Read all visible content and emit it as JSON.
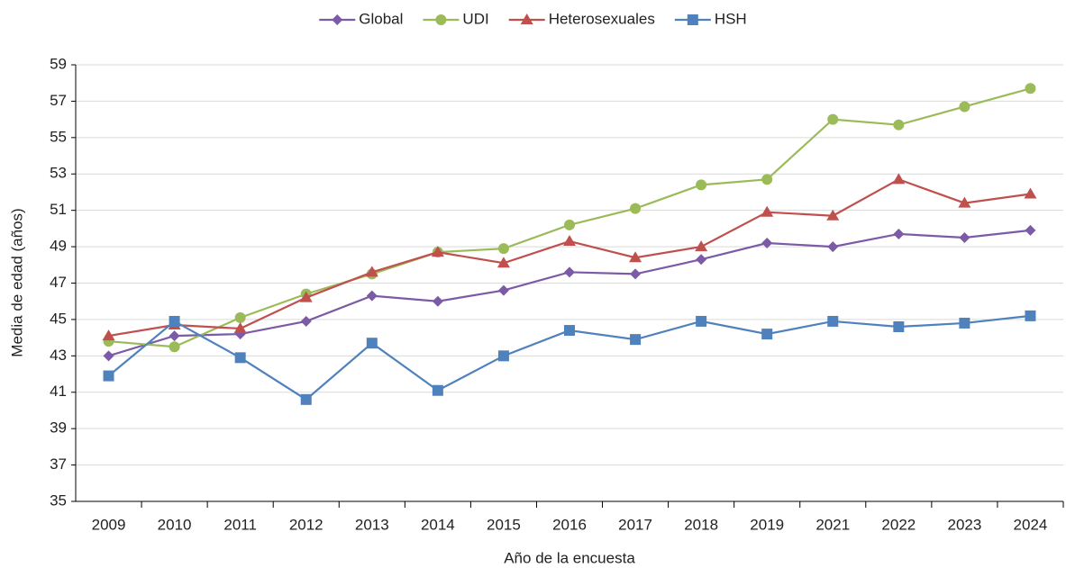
{
  "chart_data": {
    "type": "line",
    "x_label": "Año de la encuesta",
    "y_label": "Media de edad (años)",
    "categories": [
      "2009",
      "2010",
      "2011",
      "2012",
      "2013",
      "2014",
      "2015",
      "2016",
      "2017",
      "2018",
      "2019",
      "2021",
      "2022",
      "2023",
      "2024"
    ],
    "series": [
      {
        "name": "Global",
        "color": "#7b5aa6",
        "marker": "diamond",
        "values": [
          43.0,
          44.1,
          44.2,
          44.9,
          46.3,
          46.0,
          46.6,
          47.6,
          47.5,
          48.3,
          49.2,
          49.0,
          49.7,
          49.5,
          49.9
        ]
      },
      {
        "name": "UDI",
        "color": "#9bbb59",
        "marker": "circle",
        "values": [
          43.8,
          43.5,
          45.1,
          46.4,
          47.5,
          48.7,
          48.9,
          50.2,
          51.1,
          52.4,
          52.7,
          56.0,
          55.7,
          56.7,
          57.7
        ]
      },
      {
        "name": "Heterosexuales",
        "color": "#c0504d",
        "marker": "triangle",
        "values": [
          44.1,
          44.7,
          44.5,
          46.2,
          47.6,
          48.7,
          48.1,
          49.3,
          48.4,
          49.0,
          50.9,
          50.7,
          52.7,
          51.4,
          51.9
        ]
      },
      {
        "name": "HSH",
        "color": "#4f81bd",
        "marker": "square",
        "values": [
          41.9,
          44.9,
          42.9,
          40.6,
          43.7,
          41.1,
          43.0,
          44.4,
          43.9,
          44.9,
          44.2,
          44.9,
          44.6,
          44.8,
          45.2
        ]
      }
    ],
    "ylim": [
      35,
      59
    ],
    "yticks": [
      35,
      37,
      39,
      41,
      43,
      45,
      47,
      49,
      51,
      53,
      55,
      57,
      59
    ],
    "grid": true,
    "legend": "top"
  }
}
